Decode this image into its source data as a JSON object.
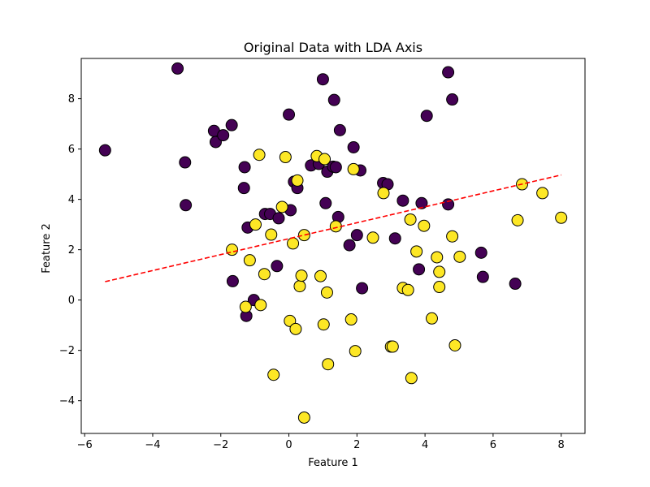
{
  "chart_data": {
    "type": "scatter",
    "title": "Original Data with LDA Axis",
    "xlabel": "Feature 1",
    "ylabel": "Feature 2",
    "xlim": [
      -6.1,
      8.7
    ],
    "ylim": [
      -5.3,
      9.6
    ],
    "xticks": [
      -6,
      -4,
      -2,
      0,
      2,
      4,
      6,
      8
    ],
    "yticks": [
      -4,
      -2,
      0,
      2,
      4,
      6,
      8
    ],
    "grid": false,
    "colors": {
      "class_0": "#440154",
      "class_1": "#fde725",
      "edge": "#000000",
      "lda_line": "#ff0000"
    },
    "series": [
      {
        "class": 0,
        "points": [
          [
            -5.4,
            5.95
          ],
          [
            -3.27,
            9.2
          ],
          [
            -3.05,
            5.47
          ],
          [
            -3.03,
            3.77
          ],
          [
            -2.2,
            6.72
          ],
          [
            -2.15,
            6.28
          ],
          [
            -1.93,
            6.55
          ],
          [
            -1.68,
            6.95
          ],
          [
            -1.3,
            5.28
          ],
          [
            -1.32,
            4.45
          ],
          [
            -1.21,
            2.88
          ],
          [
            -1.03,
            0.0
          ],
          [
            -1.25,
            -0.63
          ],
          [
            -1.65,
            0.75
          ],
          [
            -0.7,
            3.42
          ],
          [
            -0.55,
            3.42
          ],
          [
            -0.3,
            3.25
          ],
          [
            0.0,
            7.37
          ],
          [
            0.05,
            3.57
          ],
          [
            0.15,
            4.7
          ],
          [
            0.25,
            4.45
          ],
          [
            0.65,
            5.35
          ],
          [
            0.88,
            5.41
          ],
          [
            1.0,
            8.77
          ],
          [
            1.08,
            3.85
          ],
          [
            1.13,
            5.1
          ],
          [
            1.3,
            5.3
          ],
          [
            1.33,
            7.95
          ],
          [
            1.38,
            5.28
          ],
          [
            1.45,
            3.3
          ],
          [
            1.5,
            6.75
          ],
          [
            1.78,
            2.18
          ],
          [
            1.9,
            6.07
          ],
          [
            2.0,
            2.58
          ],
          [
            2.1,
            5.15
          ],
          [
            2.15,
            0.47
          ],
          [
            2.77,
            4.65
          ],
          [
            2.9,
            4.6
          ],
          [
            3.12,
            2.45
          ],
          [
            3.35,
            3.95
          ],
          [
            3.82,
            1.22
          ],
          [
            3.9,
            3.85
          ],
          [
            4.05,
            7.32
          ],
          [
            4.68,
            9.05
          ],
          [
            4.68,
            3.8
          ],
          [
            4.8,
            7.97
          ],
          [
            5.65,
            1.88
          ],
          [
            5.7,
            0.92
          ],
          [
            6.65,
            0.65
          ],
          [
            -0.35,
            1.35
          ]
        ]
      },
      {
        "class": 1,
        "points": [
          [
            -1.67,
            2.0
          ],
          [
            -1.27,
            -0.27
          ],
          [
            -1.15,
            1.58
          ],
          [
            -0.98,
            3.0
          ],
          [
            -0.87,
            5.77
          ],
          [
            -0.83,
            -0.2
          ],
          [
            -0.72,
            1.03
          ],
          [
            -0.52,
            2.6
          ],
          [
            -0.45,
            -2.97
          ],
          [
            -0.2,
            3.7
          ],
          [
            -0.1,
            5.68
          ],
          [
            0.03,
            -0.83
          ],
          [
            0.12,
            2.25
          ],
          [
            0.2,
            -1.15
          ],
          [
            0.25,
            4.75
          ],
          [
            0.32,
            0.55
          ],
          [
            0.37,
            0.97
          ],
          [
            0.45,
            2.58
          ],
          [
            0.45,
            -4.67
          ],
          [
            0.82,
            5.72
          ],
          [
            0.93,
            0.95
          ],
          [
            1.02,
            -0.97
          ],
          [
            1.12,
            0.3
          ],
          [
            1.15,
            -2.55
          ],
          [
            1.38,
            2.93
          ],
          [
            1.83,
            -0.77
          ],
          [
            1.9,
            5.2
          ],
          [
            1.95,
            -2.03
          ],
          [
            2.47,
            2.48
          ],
          [
            2.78,
            4.25
          ],
          [
            3.0,
            -1.85
          ],
          [
            3.05,
            -1.85
          ],
          [
            3.35,
            0.48
          ],
          [
            3.5,
            0.4
          ],
          [
            3.57,
            3.2
          ],
          [
            3.6,
            -3.1
          ],
          [
            3.75,
            1.93
          ],
          [
            3.97,
            2.95
          ],
          [
            4.2,
            -0.73
          ],
          [
            4.35,
            1.7
          ],
          [
            4.42,
            1.12
          ],
          [
            4.42,
            0.52
          ],
          [
            4.8,
            2.53
          ],
          [
            4.88,
            -1.8
          ],
          [
            5.02,
            1.72
          ],
          [
            6.72,
            3.17
          ],
          [
            6.85,
            4.6
          ],
          [
            7.45,
            4.25
          ],
          [
            8.0,
            3.27
          ],
          [
            1.05,
            5.6
          ]
        ]
      }
    ],
    "lda_line": {
      "style": "dashed",
      "from": [
        -5.4,
        0.73
      ],
      "to": [
        8.0,
        4.97
      ]
    }
  }
}
